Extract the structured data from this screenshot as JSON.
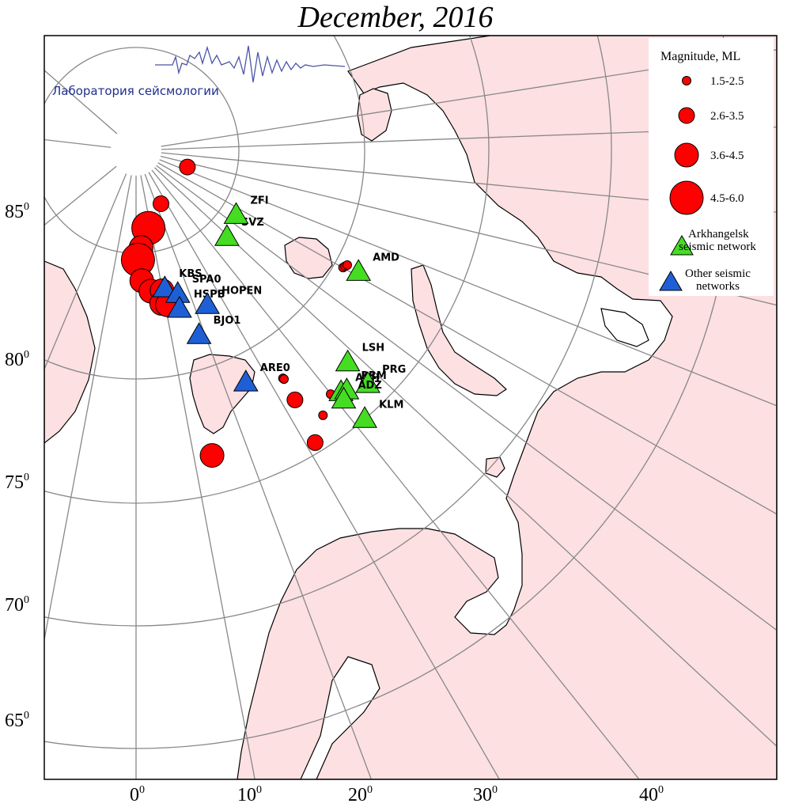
{
  "title": "December, 2016",
  "lab_logo": {
    "text": "Лаборатория сейсмологии",
    "color": "#1f2f8c"
  },
  "colors": {
    "land": "#fde0e2",
    "sea": "#ffffff",
    "event": "#ff0000",
    "arkhangelsk": "#44dd22",
    "other": "#1f5fd6"
  },
  "lat_labels": [
    "85",
    "80",
    "75",
    "70",
    "65"
  ],
  "lon_labels": [
    "0",
    "10",
    "20",
    "30",
    "40"
  ],
  "degree_mark": "0",
  "legend": {
    "title": "Magnitude, ML",
    "magnitudes": [
      {
        "label": "1.5-2.5"
      },
      {
        "label": "2.6-3.5"
      },
      {
        "label": "3.6-4.5"
      },
      {
        "label": "4.5-6.0"
      }
    ],
    "networks": [
      {
        "line1": "Arkhangelsk",
        "line2": "seismic network",
        "color": "#44dd22"
      },
      {
        "line1": "Other seismic",
        "line2": "networks",
        "color": "#1f5fd6"
      }
    ]
  },
  "stations": [
    {
      "code": "SVZ",
      "network": "arkhangelsk",
      "lat": 80.1,
      "lon": 47.0
    },
    {
      "code": "ZFI",
      "network": "arkhangelsk",
      "lat": 80.6,
      "lon": 57.9
    },
    {
      "code": "AMD",
      "network": "arkhangelsk",
      "lat": 69.7,
      "lon": 61.7
    },
    {
      "code": "LSH",
      "network": "arkhangelsk",
      "lat": 66.0,
      "lon": 45.2
    },
    {
      "code": "ARH",
      "network": "arkhangelsk",
      "lat": 64.6,
      "lon": 40.5
    },
    {
      "code": "PRM",
      "network": "arkhangelsk",
      "lat": 64.4,
      "lon": 41.5
    },
    {
      "code": "PRG",
      "network": "arkhangelsk",
      "lat": 63.6,
      "lon": 45.0
    },
    {
      "code": "ADZ",
      "network": "arkhangelsk",
      "lat": 64.0,
      "lon": 40.0
    },
    {
      "code": "KLM",
      "network": "arkhangelsk",
      "lat": 61.7,
      "lon": 40.6
    },
    {
      "code": "KBS",
      "network": "other",
      "lat": 78.9,
      "lon": 11.9
    },
    {
      "code": "SPA0",
      "network": "other",
      "lat": 78.2,
      "lon": 16.4
    },
    {
      "code": "HSPB",
      "network": "other",
      "lat": 77.0,
      "lon": 15.5
    },
    {
      "code": "HOPEN",
      "network": "other",
      "lat": 76.5,
      "lon": 25.0
    },
    {
      "code": "BJO1",
      "network": "other",
      "lat": 74.5,
      "lon": 19.0
    },
    {
      "code": "ARE0",
      "network": "other",
      "lat": 69.5,
      "lon": 25.5
    }
  ],
  "events": [
    {
      "lat": 85.8,
      "lon": 72.0,
      "magnitude": 3.0
    },
    {
      "lat": 85.4,
      "lon": 25.0,
      "magnitude": 3.0
    },
    {
      "lat": 84.0,
      "lon": 8.0,
      "magnitude": 3.0
    },
    {
      "lat": 83.8,
      "lon": 9.0,
      "magnitude": 4.6
    },
    {
      "lat": 82.3,
      "lon": 3.0,
      "magnitude": 4.0
    },
    {
      "lat": 81.3,
      "lon": 1.0,
      "magnitude": 4.6
    },
    {
      "lat": 79.6,
      "lon": 2.5,
      "magnitude": 4.0
    },
    {
      "lat": 78.7,
      "lon": 6.0,
      "magnitude": 4.0
    },
    {
      "lat": 78.6,
      "lon": 10.5,
      "magnitude": 4.0
    },
    {
      "lat": 77.6,
      "lon": 9.5,
      "magnitude": 4.0
    },
    {
      "lat": 77.4,
      "lon": 11.5,
      "magnitude": 4.0
    },
    {
      "lat": 70.9,
      "lon": 60.5,
      "magnitude": 2.2
    },
    {
      "lat": 70.8,
      "lon": 61.0,
      "magnitude": 2.2
    },
    {
      "lat": 70.7,
      "lon": 61.5,
      "magnitude": 2.2
    },
    {
      "lat": 68.2,
      "lon": 32.8,
      "magnitude": 2.2
    },
    {
      "lat": 68.1,
      "lon": 32.9,
      "magnitude": 2.2
    },
    {
      "lat": 64.9,
      "lon": 38.6,
      "magnitude": 2.0
    },
    {
      "lat": 66.2,
      "lon": 32.5,
      "magnitude": 3.0
    },
    {
      "lat": 64.7,
      "lon": 14.0,
      "magnitude": 4.0
    },
    {
      "lat": 63.9,
      "lon": 35.2,
      "magnitude": 2.0
    },
    {
      "lat": 62.4,
      "lon": 31.5,
      "magnitude": 3.0
    }
  ]
}
